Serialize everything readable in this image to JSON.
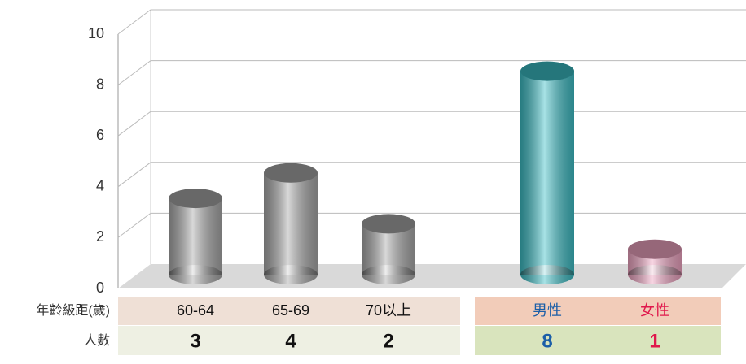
{
  "chart_data": {
    "type": "bar",
    "categories": [
      "60-64",
      "65-69",
      "70以上",
      "男性",
      "女性"
    ],
    "values": [
      3,
      4,
      2,
      8,
      1
    ],
    "colors": [
      "#a9a9a9",
      "#a9a9a9",
      "#a9a9a9",
      "#3dbfc7",
      "#f2a6c4"
    ],
    "label_colors": [
      "#111111",
      "#111111",
      "#111111",
      "#1b5ea8",
      "#e0184c"
    ],
    "row_labels": [
      "年齡級距(歲)",
      "人數"
    ],
    "ylim": [
      0,
      10
    ],
    "yticks": [
      0,
      2,
      4,
      6,
      8,
      10
    ],
    "grid": true
  }
}
